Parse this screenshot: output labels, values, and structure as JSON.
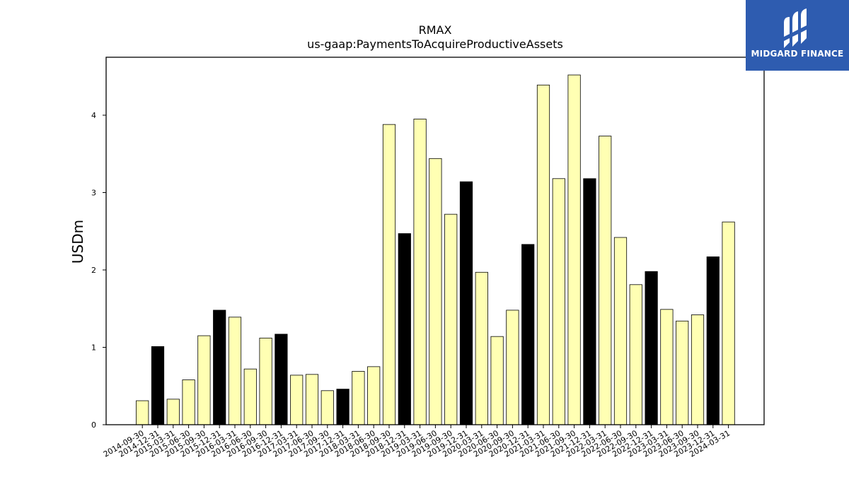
{
  "chart_data": {
    "type": "bar",
    "title": "RMAX",
    "subtitle": "us-gaap:PaymentsToAcquireProductiveAssets",
    "xlabel": "",
    "ylabel": "USDm",
    "ylim": [
      0,
      4.75
    ],
    "yticks": [
      0,
      1,
      2,
      3,
      4
    ],
    "grid": false,
    "categories": [
      "2014-09-30",
      "2014-12-31",
      "2015-03-31",
      "2015-06-30",
      "2015-09-30",
      "2015-12-31",
      "2016-03-31",
      "2016-06-30",
      "2016-09-30",
      "2016-12-31",
      "2017-03-31",
      "2017-06-30",
      "2017-09-30",
      "2017-12-31",
      "2018-03-31",
      "2018-06-30",
      "2018-09-30",
      "2018-12-31",
      "2019-03-31",
      "2019-06-30",
      "2019-09-30",
      "2019-12-31",
      "2020-03-31",
      "2020-06-30",
      "2020-09-30",
      "2020-12-31",
      "2021-03-31",
      "2021-06-30",
      "2021-09-30",
      "2021-12-31",
      "2022-03-31",
      "2022-06-30",
      "2022-09-30",
      "2022-12-31",
      "2023-03-31",
      "2023-06-30",
      "2023-09-30",
      "2023-12-31",
      "2024-03-31"
    ],
    "values": [
      0.31,
      1.01,
      0.33,
      0.58,
      1.15,
      1.48,
      1.39,
      0.72,
      1.12,
      1.17,
      0.64,
      0.65,
      0.44,
      0.46,
      0.69,
      0.75,
      3.88,
      2.47,
      3.95,
      3.44,
      2.72,
      3.14,
      1.97,
      1.14,
      1.48,
      2.33,
      4.39,
      3.18,
      4.52,
      3.18,
      3.73,
      2.42,
      1.81,
      1.98,
      1.49,
      1.34,
      1.42,
      2.17,
      2.62
    ],
    "highlight_indices": [
      1,
      5,
      9,
      13,
      17,
      21,
      25,
      29,
      33,
      37
    ],
    "colors": {
      "bar": "#ffffb3",
      "highlight": "#000000",
      "edge": "#000000",
      "axis": "#000000"
    }
  },
  "logo": {
    "text": "MIDGARD FINANCE",
    "background": "#2e5cb0"
  }
}
